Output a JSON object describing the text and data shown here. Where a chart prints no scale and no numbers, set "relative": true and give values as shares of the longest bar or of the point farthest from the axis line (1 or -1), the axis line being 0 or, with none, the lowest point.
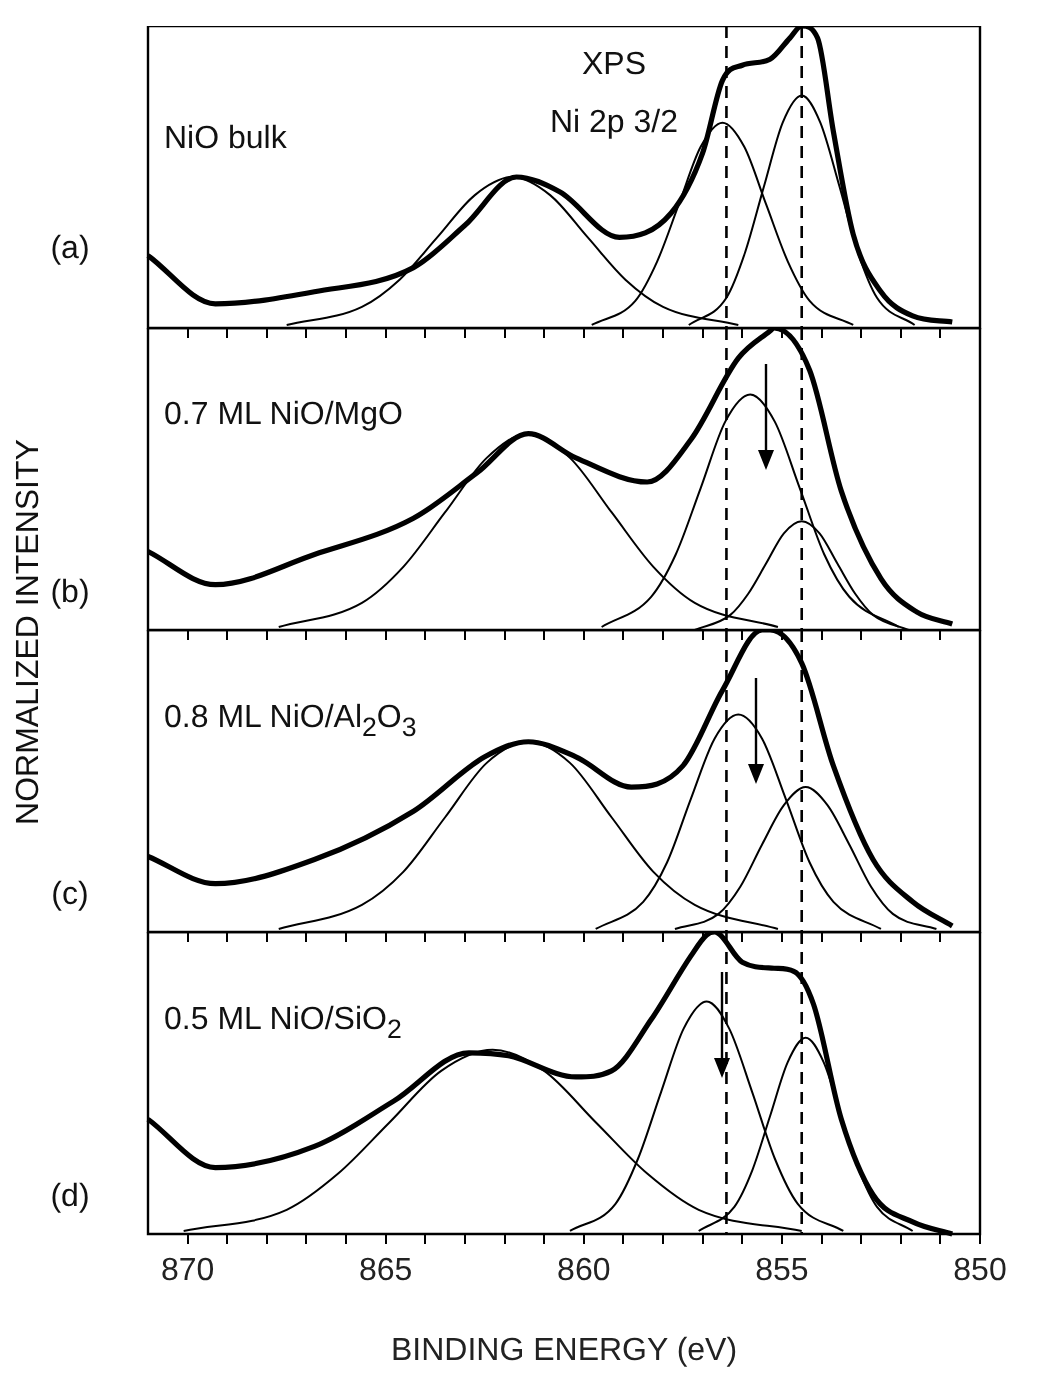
{
  "chart_data": [
    {
      "type": "line",
      "relative": true,
      "ylabel": "NORMALIZED INTENSITY",
      "xlim": [
        871,
        850
      ],
      "marker": "none",
      "tick_labels": false,
      "xticks": [
        850,
        {
          "value": 851,
          "label": null
        },
        {
          "value": 852,
          "label": null
        },
        {
          "value": 853,
          "label": null
        },
        {
          "value": 854,
          "label": null
        },
        855,
        {
          "value": 856,
          "label": null
        },
        {
          "value": 857,
          "label": null
        },
        {
          "value": 858,
          "label": null
        },
        {
          "value": 859,
          "label": null
        },
        860,
        {
          "value": 861,
          "label": null
        },
        {
          "value": 862,
          "label": null
        },
        {
          "value": 863,
          "label": null
        },
        {
          "value": 864,
          "label": null
        },
        865,
        {
          "value": 866,
          "label": null
        },
        {
          "value": 867,
          "label": null
        },
        {
          "value": 868,
          "label": null
        },
        {
          "value": 869,
          "label": null
        },
        870
      ],
      "ref_lines": [
        {
          "axis": "x",
          "value": 856.4,
          "color": "#000000",
          "line_style": "dashed"
        },
        {
          "axis": "x",
          "value": 854.5,
          "color": "#000000",
          "line_style": "dashed"
        }
      ],
      "annotations": [
        "(a)",
        "NiO bulk",
        "XPS",
        "Ni 2p 3/2"
      ],
      "series": [
        {
          "color": "#000000",
          "x": [
            871.0,
            869.3,
            866.8,
            864.3,
            863.0,
            861.7,
            860.6,
            859.1,
            857.8,
            857.0,
            856.5,
            856.0,
            855.3,
            854.8,
            854.5,
            854.1,
            853.7,
            853.2,
            852.5,
            851.7,
            850.7
          ],
          "values": [
            0.24,
            0.08,
            0.12,
            0.2,
            0.34,
            0.5,
            0.45,
            0.3,
            0.38,
            0.58,
            0.82,
            0.87,
            0.89,
            0.96,
            1.0,
            0.96,
            0.65,
            0.31,
            0.12,
            0.04,
            0.02
          ]
        },
        {
          "color": "#000000",
          "x": [
            856.1,
            858.0,
            858.95,
            859.9,
            860.85,
            861.8,
            862.75,
            863.7,
            864.65,
            865.6,
            867.5
          ],
          "values": [
            0.01,
            0.07,
            0.16,
            0.3,
            0.44,
            0.5,
            0.44,
            0.3,
            0.16,
            0.07,
            0.01
          ]
        },
        {
          "color": "#000000",
          "x": [
            853.2,
            854.3,
            854.85,
            855.4,
            855.95,
            856.5,
            857.05,
            857.6,
            858.15,
            858.7,
            859.8
          ],
          "values": [
            0.01,
            0.09,
            0.22,
            0.41,
            0.6,
            0.68,
            0.6,
            0.41,
            0.22,
            0.09,
            0.01
          ]
        },
        {
          "color": "#000000",
          "x": [
            851.65,
            852.6,
            853.08,
            853.55,
            854.03,
            854.5,
            854.98,
            855.45,
            855.93,
            856.4,
            857.35
          ],
          "values": [
            0.01,
            0.1,
            0.25,
            0.47,
            0.68,
            0.77,
            0.68,
            0.47,
            0.25,
            0.1,
            0.01
          ]
        }
      ]
    },
    {
      "type": "line",
      "relative": true,
      "xlim": [
        871,
        850
      ],
      "marker": "none",
      "tick_labels": false,
      "xticks": [
        850,
        {
          "value": 851,
          "label": null
        },
        {
          "value": 852,
          "label": null
        },
        {
          "value": 853,
          "label": null
        },
        {
          "value": 854,
          "label": null
        },
        855,
        {
          "value": 856,
          "label": null
        },
        {
          "value": 857,
          "label": null
        },
        {
          "value": 858,
          "label": null
        },
        {
          "value": 859,
          "label": null
        },
        860,
        {
          "value": 861,
          "label": null
        },
        {
          "value": 862,
          "label": null
        },
        {
          "value": 863,
          "label": null
        },
        {
          "value": 864,
          "label": null
        },
        865,
        {
          "value": 866,
          "label": null
        },
        {
          "value": 867,
          "label": null
        },
        {
          "value": 868,
          "label": null
        },
        {
          "value": 869,
          "label": null
        },
        870
      ],
      "ref_lines": [
        {
          "axis": "x",
          "value": 856.4,
          "color": "#000000",
          "line_style": "dashed"
        },
        {
          "axis": "x",
          "value": 854.5,
          "color": "#000000",
          "line_style": "dashed"
        }
      ],
      "annotations": [
        "(b)",
        "0.7 ML NiO/MgO"
      ],
      "series": [
        {
          "color": "#000000",
          "x": [
            871.0,
            869.3,
            866.8,
            864.3,
            862.7,
            861.4,
            860.2,
            858.4,
            857.3,
            856.1,
            855.3,
            855.2,
            854.3,
            853.5,
            852.5,
            851.6,
            850.7
          ],
          "values": [
            0.26,
            0.15,
            0.25,
            0.37,
            0.52,
            0.65,
            0.57,
            0.49,
            0.63,
            0.9,
            0.99,
            1.0,
            0.86,
            0.46,
            0.17,
            0.06,
            0.02
          ]
        },
        {
          "color": "#000000",
          "x": [
            855.1,
            857.2,
            858.25,
            859.3,
            860.35,
            861.4,
            862.45,
            863.5,
            864.55,
            865.6,
            867.7
          ],
          "values": [
            0.01,
            0.09,
            0.21,
            0.39,
            0.57,
            0.65,
            0.57,
            0.39,
            0.21,
            0.09,
            0.01
          ]
        },
        {
          "color": "#000000",
          "x": [
            852.05,
            853.3,
            853.93,
            854.55,
            855.18,
            855.8,
            856.43,
            857.05,
            857.68,
            858.3,
            859.55
          ],
          "values": [
            0.01,
            0.11,
            0.25,
            0.47,
            0.69,
            0.78,
            0.69,
            0.47,
            0.25,
            0.11,
            0.01
          ]
        },
        {
          "color": "#000000",
          "x": [
            851.8,
            852.7,
            853.15,
            853.6,
            854.05,
            854.5,
            854.95,
            855.4,
            855.85,
            856.3,
            857.2
          ],
          "values": [
            0.0,
            0.05,
            0.12,
            0.22,
            0.32,
            0.36,
            0.32,
            0.22,
            0.12,
            0.05,
            0.0
          ]
        }
      ]
    },
    {
      "type": "line",
      "relative": true,
      "xlim": [
        871,
        850
      ],
      "marker": "none",
      "tick_labels": false,
      "xticks": [
        850,
        {
          "value": 851,
          "label": null
        },
        {
          "value": 852,
          "label": null
        },
        {
          "value": 853,
          "label": null
        },
        {
          "value": 854,
          "label": null
        },
        855,
        {
          "value": 856,
          "label": null
        },
        {
          "value": 857,
          "label": null
        },
        {
          "value": 858,
          "label": null
        },
        {
          "value": 859,
          "label": null
        },
        860,
        {
          "value": 861,
          "label": null
        },
        {
          "value": 862,
          "label": null
        },
        {
          "value": 863,
          "label": null
        },
        {
          "value": 864,
          "label": null
        },
        865,
        {
          "value": 866,
          "label": null
        },
        {
          "value": 867,
          "label": null
        },
        {
          "value": 868,
          "label": null
        },
        {
          "value": 869,
          "label": null
        },
        870
      ],
      "ref_lines": [
        {
          "axis": "x",
          "value": 856.4,
          "color": "#000000",
          "line_style": "dashed"
        },
        {
          "axis": "x",
          "value": 854.5,
          "color": "#000000",
          "line_style": "dashed"
        }
      ],
      "annotations": [
        "(c)",
        "0.8 ML NiO/Al$_{2}$O$_{3}$"
      ],
      "series": [
        {
          "color": "#000000",
          "x": [
            871.0,
            869.3,
            866.8,
            864.3,
            862.5,
            861.4,
            860.2,
            858.8,
            857.5,
            856.5,
            855.5,
            855.3,
            854.5,
            853.7,
            852.7,
            851.7,
            850.7
          ],
          "values": [
            0.25,
            0.16,
            0.24,
            0.4,
            0.58,
            0.63,
            0.58,
            0.48,
            0.55,
            0.8,
            1.0,
            1.0,
            0.89,
            0.55,
            0.24,
            0.1,
            0.02
          ]
        },
        {
          "color": "#000000",
          "x": [
            855.1,
            857.2,
            858.25,
            859.3,
            860.35,
            861.4,
            862.45,
            863.5,
            864.55,
            865.6,
            867.7
          ],
          "values": [
            0.01,
            0.09,
            0.2,
            0.38,
            0.56,
            0.63,
            0.56,
            0.38,
            0.2,
            0.09,
            0.01
          ]
        },
        {
          "color": "#000000",
          "x": [
            852.5,
            853.7,
            854.3,
            854.9,
            855.5,
            856.1,
            856.7,
            857.3,
            857.9,
            858.5,
            859.7
          ],
          "values": [
            0.01,
            0.1,
            0.23,
            0.44,
            0.64,
            0.72,
            0.64,
            0.44,
            0.23,
            0.1,
            0.01
          ]
        },
        {
          "color": "#000000",
          "x": [
            851.1,
            852.2,
            852.75,
            853.3,
            853.85,
            854.4,
            854.95,
            855.5,
            856.05,
            856.6,
            857.7
          ],
          "values": [
            0.01,
            0.06,
            0.15,
            0.29,
            0.42,
            0.48,
            0.42,
            0.29,
            0.15,
            0.06,
            0.01
          ]
        }
      ]
    },
    {
      "type": "line",
      "relative": true,
      "xlabel": "BINDING ENERGY (eV)",
      "xlim": [
        871,
        850
      ],
      "marker": "none",
      "tick_labels": "x",
      "xticks": [
        850,
        {
          "value": 851,
          "label": null
        },
        {
          "value": 852,
          "label": null
        },
        {
          "value": 853,
          "label": null
        },
        {
          "value": 854,
          "label": null
        },
        855,
        {
          "value": 856,
          "label": null
        },
        {
          "value": 857,
          "label": null
        },
        {
          "value": 858,
          "label": null
        },
        {
          "value": 859,
          "label": null
        },
        860,
        {
          "value": 861,
          "label": null
        },
        {
          "value": 862,
          "label": null
        },
        {
          "value": 863,
          "label": null
        },
        {
          "value": 864,
          "label": null
        },
        865,
        {
          "value": 866,
          "label": null
        },
        {
          "value": 867,
          "label": null
        },
        {
          "value": 868,
          "label": null
        },
        {
          "value": 869,
          "label": null
        },
        870
      ],
      "ref_lines": [
        {
          "axis": "x",
          "value": 856.4,
          "color": "#000000",
          "line_style": "dashed"
        },
        {
          "axis": "x",
          "value": 854.5,
          "color": "#000000",
          "line_style": "dashed"
        }
      ],
      "annotations": [
        "(d)",
        "0.5 ML NiO/SiO$_{2}$"
      ],
      "series": [
        {
          "color": "#000000",
          "x": [
            871.0,
            869.3,
            866.8,
            864.8,
            862.9,
            861.9,
            860.2,
            859.3,
            858.3,
            857.3,
            856.9,
            856.7,
            856.0,
            855.2,
            854.7,
            854.2,
            853.5,
            852.7,
            851.7,
            850.7
          ],
          "values": [
            0.38,
            0.22,
            0.29,
            0.44,
            0.6,
            0.59,
            0.52,
            0.54,
            0.71,
            0.92,
            0.99,
            1.0,
            0.9,
            0.88,
            0.87,
            0.76,
            0.38,
            0.13,
            0.04,
            0.0
          ]
        },
        {
          "color": "#000000",
          "x": [
            854.5,
            857.1,
            858.4,
            859.7,
            861.0,
            862.3,
            863.6,
            864.9,
            866.2,
            867.5,
            870.1
          ],
          "values": [
            0.01,
            0.08,
            0.2,
            0.37,
            0.54,
            0.61,
            0.54,
            0.37,
            0.2,
            0.08,
            0.01
          ]
        },
        {
          "color": "#000000",
          "x": [
            853.45,
            854.6,
            855.18,
            855.75,
            856.33,
            856.9,
            857.48,
            858.05,
            858.63,
            859.2,
            860.35
          ],
          "values": [
            0.01,
            0.1,
            0.25,
            0.47,
            0.68,
            0.77,
            0.68,
            0.47,
            0.25,
            0.1,
            0.01
          ]
        },
        {
          "color": "#000000",
          "x": [
            851.7,
            852.6,
            853.05,
            853.5,
            853.95,
            854.4,
            854.85,
            855.3,
            855.75,
            856.2,
            857.1
          ],
          "values": [
            0.01,
            0.09,
            0.21,
            0.39,
            0.57,
            0.65,
            0.57,
            0.39,
            0.21,
            0.09,
            0.01
          ]
        }
      ]
    }
  ]
}
